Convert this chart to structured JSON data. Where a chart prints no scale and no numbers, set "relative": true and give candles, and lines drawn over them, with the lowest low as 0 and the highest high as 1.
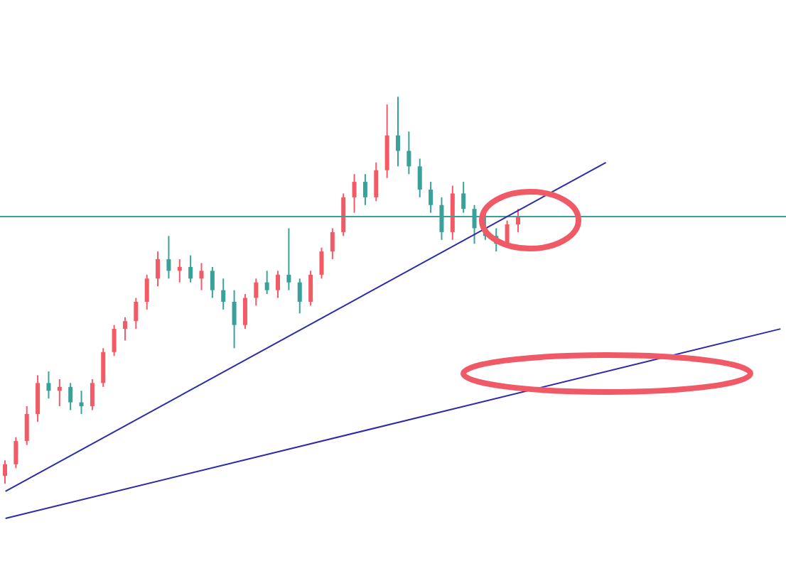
{
  "chart_data": {
    "type": "candlestick",
    "relative": true,
    "categories": [
      null,
      null,
      null,
      null,
      null,
      null,
      null,
      null,
      null,
      null,
      null,
      null,
      null,
      null,
      null,
      null,
      null,
      null,
      null,
      null,
      null,
      null,
      null,
      null,
      null,
      null,
      null,
      null,
      null,
      null,
      null,
      null,
      null,
      null,
      null,
      null,
      null,
      null,
      null,
      null,
      null,
      null,
      null,
      null,
      null,
      null,
      null,
      null,
      null,
      null,
      null,
      null,
      null,
      null,
      null,
      null,
      null,
      null,
      null,
      null,
      null,
      null,
      null,
      null,
      null,
      null,
      null,
      null,
      null,
      null,
      null,
      null
    ],
    "ohlc": [
      [
        0.02,
        0.06,
        0,
        0.05
      ],
      [
        0.05,
        0.12,
        0.04,
        0.11
      ],
      [
        0.11,
        0.2,
        0.1,
        0.18
      ],
      [
        0.18,
        0.28,
        0.16,
        0.26
      ],
      [
        0.26,
        0.29,
        0.22,
        0.24
      ],
      [
        0.24,
        0.27,
        0.2,
        0.25
      ],
      [
        0.25,
        0.26,
        0.19,
        0.21
      ],
      [
        0.21,
        0.24,
        0.18,
        0.2
      ],
      [
        0.2,
        0.27,
        0.19,
        0.26
      ],
      [
        0.26,
        0.35,
        0.25,
        0.34
      ],
      [
        0.34,
        0.41,
        0.33,
        0.4
      ],
      [
        0.4,
        0.43,
        0.37,
        0.42
      ],
      [
        0.42,
        0.48,
        0.4,
        0.47
      ],
      [
        0.47,
        0.54,
        0.45,
        0.53
      ],
      [
        0.53,
        0.6,
        0.51,
        0.58
      ],
      [
        0.58,
        0.64,
        0.53,
        0.55
      ],
      [
        0.55,
        0.58,
        0.52,
        0.56
      ],
      [
        0.56,
        0.59,
        0.52,
        0.53
      ],
      [
        0.53,
        0.57,
        0.5,
        0.55
      ],
      [
        0.55,
        0.56,
        0.48,
        0.5
      ],
      [
        0.5,
        0.53,
        0.45,
        0.47
      ],
      [
        0.47,
        0.5,
        0.35,
        0.41
      ],
      [
        0.41,
        0.49,
        0.4,
        0.48
      ],
      [
        0.48,
        0.53,
        0.46,
        0.52
      ],
      [
        0.52,
        0.55,
        0.49,
        0.5
      ],
      [
        0.5,
        0.55,
        0.48,
        0.54
      ],
      [
        0.54,
        0.66,
        0.5,
        0.52
      ],
      [
        0.52,
        0.53,
        0.44,
        0.47
      ],
      [
        0.47,
        0.55,
        0.46,
        0.54
      ],
      [
        0.54,
        0.61,
        0.53,
        0.6
      ],
      [
        0.6,
        0.66,
        0.58,
        0.65
      ],
      [
        0.65,
        0.75,
        0.64,
        0.74
      ],
      [
        0.74,
        0.8,
        0.7,
        0.78
      ],
      [
        0.78,
        0.8,
        0.72,
        0.74
      ],
      [
        0.74,
        0.83,
        0.73,
        0.81
      ],
      [
        0.81,
        0.98,
        0.79,
        0.9
      ],
      [
        0.9,
        1,
        0.82,
        0.86
      ],
      [
        0.86,
        0.91,
        0.8,
        0.82
      ],
      [
        0.82,
        0.84,
        0.74,
        0.76
      ],
      [
        0.76,
        0.78,
        0.7,
        0.72
      ],
      [
        0.72,
        0.74,
        0.63,
        0.65
      ],
      [
        0.65,
        0.77,
        0.63,
        0.75
      ],
      [
        0.75,
        0.78,
        0.7,
        0.71
      ],
      [
        0.71,
        0.72,
        0.62,
        0.66
      ],
      [
        0.66,
        0.7,
        0.63,
        0.64
      ],
      [
        0.64,
        0.66,
        0.6,
        0.62
      ],
      [
        0.62,
        0.68,
        0.61,
        0.67
      ],
      [
        0.67,
        0.71,
        0.65,
        0.69
      ],
      null,
      null,
      null,
      null,
      null,
      null,
      null,
      null,
      null,
      null,
      null,
      null,
      null,
      null,
      null,
      null,
      null,
      null,
      null,
      null,
      null,
      null,
      null,
      null
    ],
    "colors": [
      "#f25a66",
      "#f25a66",
      "#f25a66",
      "#f25a66",
      "#3aa19a",
      "#f25a66",
      "#3aa19a",
      "#3aa19a",
      "#f25a66",
      "#f25a66",
      "#f25a66",
      "#f25a66",
      "#f25a66",
      "#f25a66",
      "#f25a66",
      "#3aa19a",
      "#f25a66",
      "#3aa19a",
      "#f25a66",
      "#3aa19a",
      "#3aa19a",
      "#3aa19a",
      "#f25a66",
      "#f25a66",
      "#3aa19a",
      "#f25a66",
      "#3aa19a",
      "#3aa19a",
      "#f25a66",
      "#f25a66",
      "#f25a66",
      "#f25a66",
      "#f25a66",
      "#3aa19a",
      "#f25a66",
      "#f25a66",
      "#3aa19a",
      "#3aa19a",
      "#3aa19a",
      "#3aa19a",
      "#3aa19a",
      "#f25a66",
      "#3aa19a",
      "#3aa19a",
      "#3aa19a",
      "#3aa19a",
      "#f25a66",
      "#f25a66",
      null,
      null,
      null,
      null,
      null,
      null,
      null,
      null,
      null,
      null,
      null,
      null,
      null,
      null,
      null,
      null,
      null,
      null,
      null,
      null,
      null,
      null,
      null,
      null
    ],
    "series": [
      {
        "type": "line",
        "color": "#2c2ca8",
        "values": [
          -0.02,
          null,
          null,
          null,
          null,
          null,
          null,
          null,
          null,
          null,
          null,
          null,
          null,
          null,
          null,
          null,
          null,
          null,
          null,
          null,
          null,
          null,
          null,
          null,
          null,
          null,
          null,
          null,
          null,
          null,
          null,
          null,
          null,
          null,
          null,
          null,
          null,
          null,
          null,
          null,
          null,
          null,
          null,
          null,
          null,
          null,
          null,
          null,
          null,
          null,
          null,
          null,
          null,
          null,
          null,
          0.83,
          null,
          null,
          null,
          null,
          null,
          null,
          null,
          null,
          null,
          null,
          null,
          null,
          null,
          null,
          null,
          null
        ]
      },
      {
        "type": "line",
        "color": "#2c2ca8",
        "values": [
          -0.09,
          null,
          null,
          null,
          null,
          null,
          null,
          null,
          null,
          null,
          null,
          null,
          null,
          null,
          null,
          null,
          null,
          null,
          null,
          null,
          null,
          null,
          null,
          null,
          null,
          null,
          null,
          null,
          null,
          null,
          null,
          null,
          null,
          null,
          null,
          null,
          null,
          null,
          null,
          null,
          null,
          null,
          null,
          null,
          null,
          null,
          null,
          null,
          null,
          null,
          null,
          null,
          null,
          null,
          null,
          null,
          null,
          null,
          null,
          null,
          null,
          null,
          null,
          null,
          null,
          null,
          null,
          null,
          null,
          null,
          null,
          0.4
        ]
      }
    ],
    "ref_lines": [
      {
        "axis": "y",
        "value": 0.69,
        "color": "#3aa19a"
      }
    ]
  }
}
